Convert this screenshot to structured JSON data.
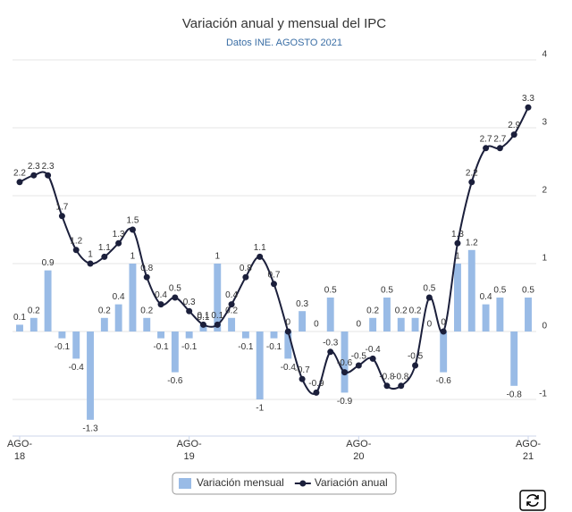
{
  "chart_data": {
    "type": "bar_line",
    "title": "Variación anual y mensual del IPC",
    "subtitle": "Datos INE. AGOSTO 2021",
    "categories": [
      "AGO-18",
      null,
      null,
      null,
      null,
      null,
      null,
      null,
      null,
      null,
      null,
      null,
      "AGO-19",
      null,
      null,
      null,
      null,
      null,
      null,
      null,
      null,
      null,
      null,
      null,
      "AGO-20",
      null,
      null,
      null,
      null,
      null,
      null,
      null,
      null,
      null,
      null,
      null,
      "AGO-21"
    ],
    "series": [
      {
        "name": "Variación mensual",
        "kind": "bar",
        "color": "#99bbe6",
        "values": [
          0.1,
          0.2,
          0.9,
          -0.1,
          -0.4,
          -1.3,
          0.2,
          0.4,
          1,
          0.2,
          -0.1,
          -0.6,
          -0.1,
          0.1,
          1,
          0.2,
          -0.1,
          -1,
          -0.1,
          -0.4,
          0.3,
          0,
          0.5,
          -0.9,
          0,
          0.2,
          0.5,
          0.2,
          0.2,
          0,
          -0.6,
          1,
          1.2,
          0.4,
          0.5,
          -0.8,
          0.5
        ]
      },
      {
        "name": "Variación anual",
        "kind": "line",
        "color": "#1b1f3b",
        "values": [
          2.2,
          2.3,
          2.3,
          1.7,
          1.2,
          1,
          1.1,
          1.3,
          1.5,
          0.8,
          0.4,
          0.5,
          0.3,
          0.1,
          0.1,
          0.4,
          0.8,
          1.1,
          0.7,
          0,
          -0.7,
          -0.9,
          -0.3,
          -0.6,
          -0.5,
          -0.4,
          -0.8,
          -0.8,
          -0.5,
          0.5,
          0,
          1.3,
          2.2,
          2.7,
          2.7,
          2.9,
          3.3
        ]
      }
    ],
    "ylim": [
      -1.5,
      4
    ],
    "yticks": [
      -1,
      0,
      1,
      2,
      3,
      4
    ],
    "grid": true
  }
}
